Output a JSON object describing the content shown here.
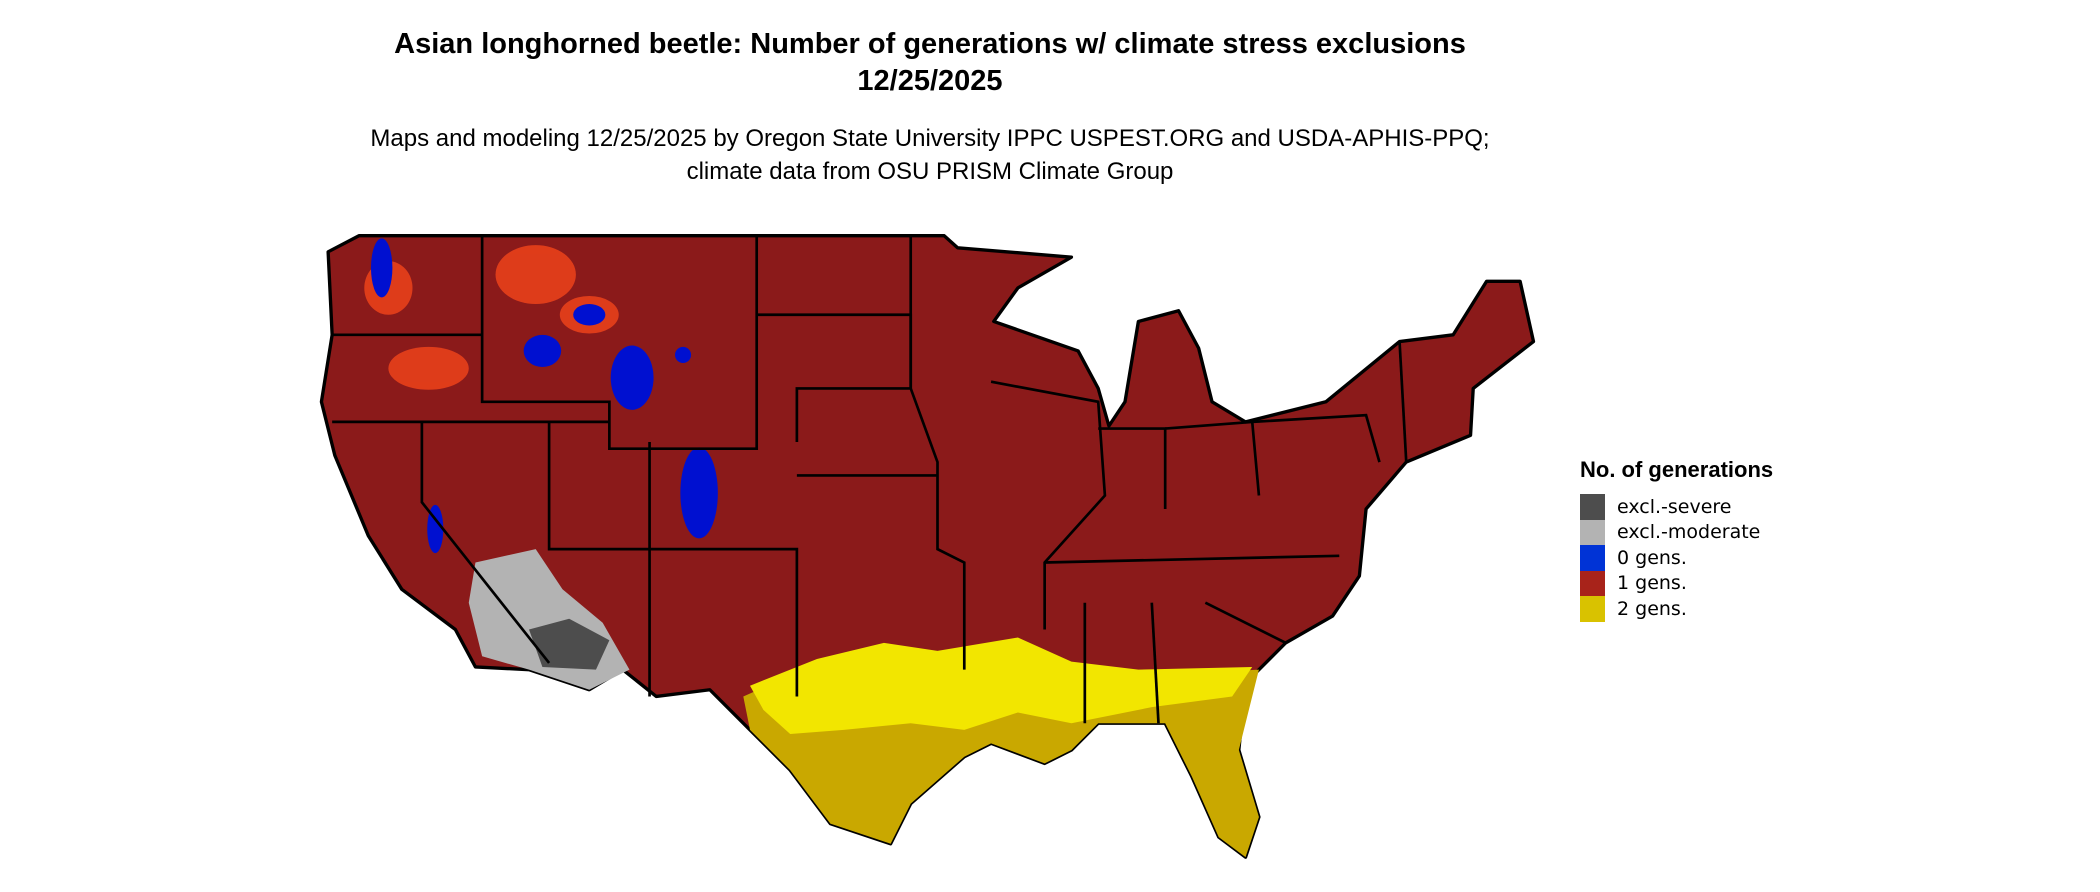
{
  "title": "Asian longhorned beetle: Number of generations w/ climate stress exclusions 12/25/2025",
  "subtitle": "Maps and modeling 12/25/2025 by Oregon State University IPPC USPEST.ORG and USDA-APHIS-PPQ; climate data from OSU PRISM Climate Group",
  "legend": {
    "title": "No. of generations",
    "items": [
      {
        "label": "excl.-severe",
        "color": "#4d4d4d"
      },
      {
        "label": "excl.-moderate",
        "color": "#b3b3b3"
      },
      {
        "label": "0 gens.",
        "color": "#0033d6"
      },
      {
        "label": "1 gens.",
        "color": "#a8231a"
      },
      {
        "label": "2 gens.",
        "color": "#d9c200"
      }
    ]
  },
  "map_colors": {
    "one_gen_area": "#8b1a1a",
    "two_gen_area": "#c9a800",
    "two_gen_bright": "#f2e600",
    "zero_gen": "#0010d0",
    "transition": "#e8401a",
    "excl_moderate": "#b3b3b3",
    "excl_severe": "#4d4d4d",
    "borders": "#000000"
  }
}
